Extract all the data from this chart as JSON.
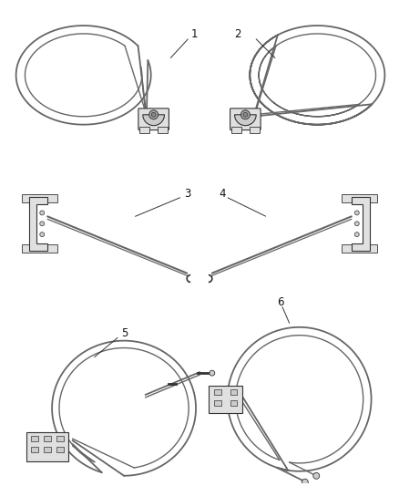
{
  "bg_color": "#ffffff",
  "line_color": "#666666",
  "dark_line": "#333333",
  "light_fill": "#e0e0e0",
  "mid_fill": "#cccccc",
  "label_color": "#111111",
  "label_fontsize": 8.5,
  "fig_width": 4.38,
  "fig_height": 5.33
}
